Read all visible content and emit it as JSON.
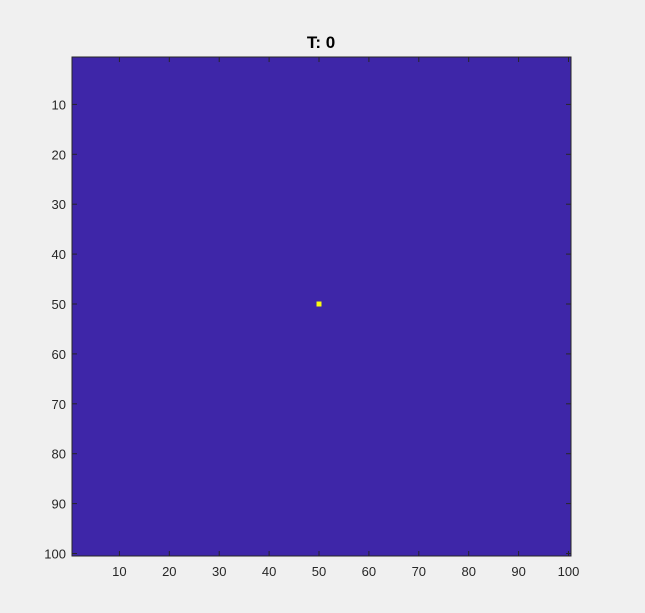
{
  "chart_data": {
    "type": "heatmap",
    "title": "T: 0",
    "xlabel": "",
    "ylabel": "",
    "grid_size": [
      100,
      100
    ],
    "xlim": [
      0.5,
      100.5
    ],
    "ylim": [
      0.5,
      100.5
    ],
    "y_direction": "reverse",
    "x_ticks": [
      10,
      20,
      30,
      40,
      50,
      60,
      70,
      80,
      90,
      100
    ],
    "y_ticks": [
      10,
      20,
      30,
      40,
      50,
      60,
      70,
      80,
      90,
      100
    ],
    "background_value": 0,
    "background_color": "#3e26a8",
    "hot_cells": [
      {
        "x": 50,
        "y": 50,
        "value": 1,
        "color": "#f9fb0e"
      }
    ],
    "grid": false,
    "legend": "none"
  }
}
